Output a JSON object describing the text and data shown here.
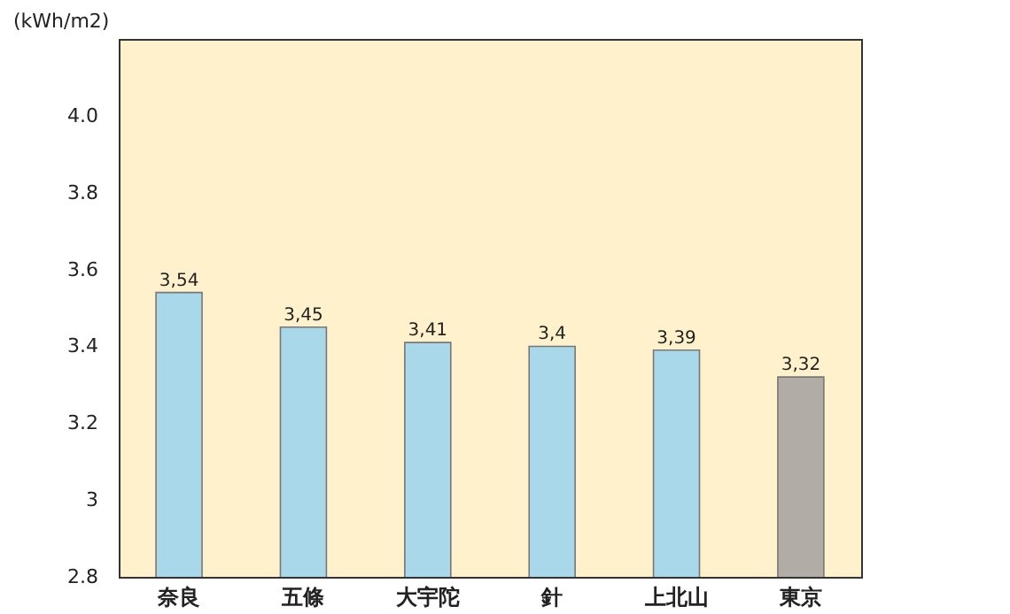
{
  "chart_data": {
    "type": "bar",
    "ylabel": "(kWh/m2)",
    "categories": [
      "奈良",
      "五條",
      "大宇陀",
      "針",
      "上北山",
      "東京"
    ],
    "values": [
      3.54,
      3.45,
      3.41,
      3.4,
      3.39,
      3.32
    ],
    "colors": [
      "#a9d8ea",
      "#a9d8ea",
      "#a9d8ea",
      "#a9d8ea",
      "#a9d8ea",
      "#b1ada6"
    ],
    "value_labels": [
      "3,54",
      "3,45",
      "3,41",
      "3,4",
      "3,39",
      "3,32"
    ],
    "ylim": [
      2.8,
      4.2
    ],
    "yticks": [
      2.8,
      {
        "value": 3,
        "label": "3"
      },
      3.2,
      3.4,
      3.6,
      3.8,
      {
        "value": 4,
        "label": "4.0"
      }
    ]
  }
}
